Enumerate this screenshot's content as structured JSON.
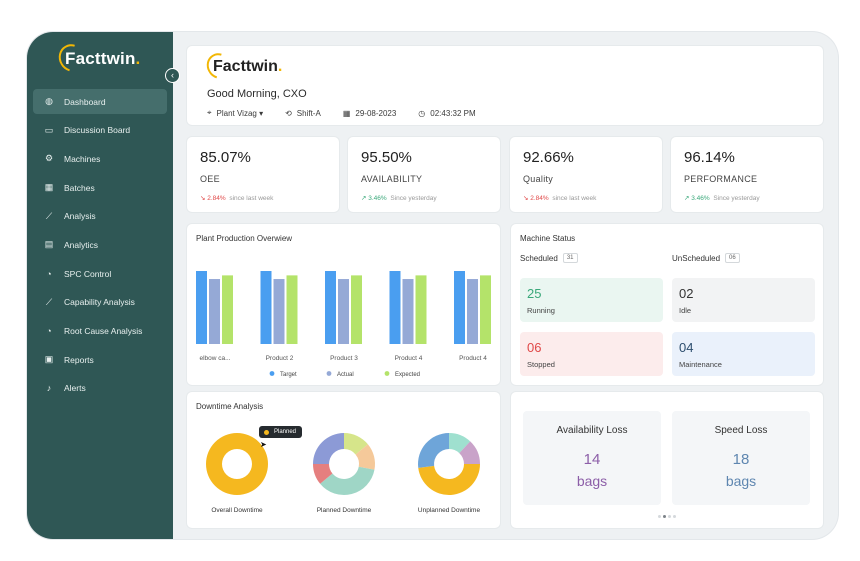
{
  "app": {
    "name": "Facttwin",
    "name_dot": ".",
    "accent": "#f2b705",
    "sidebar_bg": "#2f5755"
  },
  "sidebar": {
    "collapse_icon": "chevron-left-icon",
    "items": [
      {
        "label": "Dashboard",
        "icon": "globe-icon",
        "glyph": "◍",
        "active": true
      },
      {
        "label": "Discussion Board",
        "icon": "chat-icon",
        "glyph": "▭"
      },
      {
        "label": "Machines",
        "icon": "gears-icon",
        "glyph": "⚙"
      },
      {
        "label": "Batches",
        "icon": "batch-icon",
        "glyph": "▦"
      },
      {
        "label": "Analysis",
        "icon": "line-chart-icon",
        "glyph": "⟋"
      },
      {
        "label": "Analytics",
        "icon": "calculator-icon",
        "glyph": "▤"
      },
      {
        "label": "SPC Control",
        "icon": "pie-icon",
        "glyph": "◔"
      },
      {
        "label": "Capability Analysis",
        "icon": "trend-icon",
        "glyph": "⟋"
      },
      {
        "label": "Root Cause Analysis",
        "icon": "pie-chart-icon",
        "glyph": "◔"
      },
      {
        "label": "Reports",
        "icon": "report-icon",
        "glyph": "▣"
      },
      {
        "label": "Alerts",
        "icon": "bell-icon",
        "glyph": "♪"
      }
    ]
  },
  "header": {
    "greeting": "Good Morning, CXO",
    "plant": "Plant Vizag",
    "shift": "Shift-A",
    "date": "29-08-2023",
    "time": "02:43:32 PM"
  },
  "kpis": [
    {
      "value": "85.07%",
      "label": "OEE",
      "change": "2.84%",
      "direction": "down",
      "period": "since last week"
    },
    {
      "value": "95.50%",
      "label": "AVAILABILITY",
      "change": "3.46%",
      "direction": "up",
      "period": "Since yesterday"
    },
    {
      "value": "92.66%",
      "label": "Quality",
      "change": "2.84%",
      "direction": "down",
      "period": "since last week"
    },
    {
      "value": "96.14%",
      "label": "PERFORMANCE",
      "change": "3.46%",
      "direction": "up",
      "period": "Since yesterday"
    }
  ],
  "production": {
    "title": "Plant Production Overwiew",
    "chart_data": {
      "type": "bar",
      "categories": [
        "elbow ca...",
        "Product 2",
        "Product 3",
        "Product 4",
        "Product 4"
      ],
      "series": [
        {
          "name": "Target",
          "color": "#4a9ef0",
          "values": [
            100,
            100,
            100,
            100,
            100
          ]
        },
        {
          "name": "Actual",
          "color": "#95a9d6",
          "values": [
            89,
            89,
            89,
            89,
            89
          ]
        },
        {
          "name": "Expected",
          "color": "#b4e36a",
          "values": [
            94,
            94,
            94,
            94,
            94
          ]
        }
      ],
      "ylim": [
        0,
        100
      ],
      "legend": "bottom",
      "grid": false
    }
  },
  "machine_status": {
    "title": "Machine Status",
    "scheduled_label": "Scheduled",
    "scheduled_count": "31",
    "unscheduled_label": "UnScheduled",
    "unscheduled_count": "06",
    "boxes": [
      {
        "count": "25",
        "label": "Running",
        "bg": "#eaf6f1",
        "color": "#3aa87a"
      },
      {
        "count": "02",
        "label": "Idle",
        "bg": "#f2f3f4",
        "color": "#333333"
      },
      {
        "count": "06",
        "label": "Stopped",
        "bg": "#fcecec",
        "color": "#e04848"
      },
      {
        "count": "04",
        "label": "Maintenance",
        "bg": "#eaf1fb",
        "color": "#2d4e6e"
      }
    ]
  },
  "downtime": {
    "title": "Downtime Analysis",
    "tooltip": "Planned",
    "chart_data": [
      {
        "type": "pie",
        "title": "Overall Downtime",
        "slices": [
          {
            "value": 100,
            "color": "#f5b81f"
          }
        ]
      },
      {
        "type": "pie",
        "title": "Planned Downtime",
        "slices": [
          {
            "value": 14,
            "color": "#d6e58a"
          },
          {
            "value": 14,
            "color": "#f5c99a"
          },
          {
            "value": 36,
            "color": "#9fd6c6"
          },
          {
            "value": 11,
            "color": "#e57f7f"
          },
          {
            "value": 25,
            "color": "#8c9ad6"
          }
        ]
      },
      {
        "type": "pie",
        "title": "Unplanned Downtime",
        "slices": [
          {
            "value": 12,
            "color": "#9fe0cf"
          },
          {
            "value": 13,
            "color": "#c9a3c9"
          },
          {
            "value": 48,
            "color": "#f5b81f"
          },
          {
            "value": 27,
            "color": "#6ea5d9"
          }
        ]
      }
    ]
  },
  "losses": [
    {
      "title": "Availability Loss",
      "value": "14",
      "unit": "bags",
      "color": "#8c5ea8"
    },
    {
      "title": "Speed Loss",
      "value": "18",
      "unit": "bags",
      "color": "#5e86b0"
    }
  ]
}
